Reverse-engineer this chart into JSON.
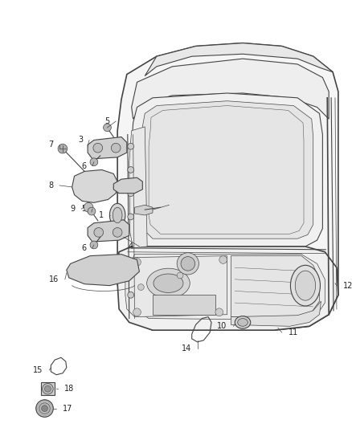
{
  "bg_color": "#ffffff",
  "line_color": "#444444",
  "label_color": "#222222",
  "lw_main": 1.2,
  "lw_med": 0.8,
  "lw_thin": 0.5,
  "label_fs": 7.0,
  "figsize": [
    4.38,
    5.33
  ],
  "dpi": 100
}
